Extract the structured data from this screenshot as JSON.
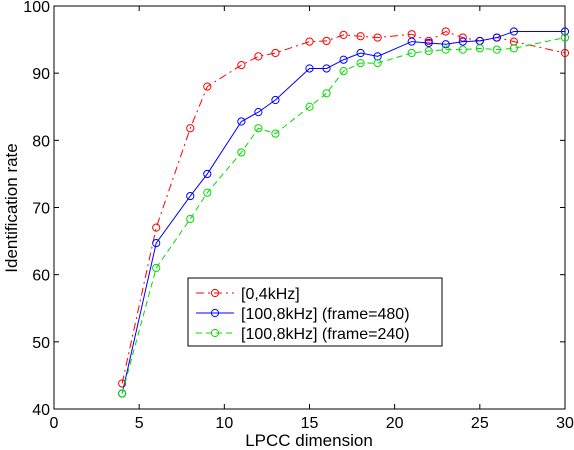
{
  "chart_data": {
    "type": "line",
    "title": "",
    "xlabel": "LPCC dimension",
    "ylabel": "Identification rate",
    "xlim": [
      0,
      30
    ],
    "ylim": [
      40,
      100
    ],
    "xticks": [
      "0",
      "5",
      "10",
      "15",
      "20",
      "25",
      "30"
    ],
    "yticks": [
      "40",
      "50",
      "60",
      "70",
      "80",
      "90",
      "100"
    ],
    "grid": false,
    "legend_position": "lower-center",
    "series": [
      {
        "name": "[0,4kHz]",
        "color": "#ff0000",
        "line_style": "dash-dot",
        "marker": "circle",
        "x": [
          4,
          6,
          8,
          9,
          11,
          12,
          13,
          15,
          16,
          17,
          18,
          19,
          21,
          22,
          23,
          24,
          25,
          26,
          27,
          30
        ],
        "y": [
          43.8,
          67,
          81.8,
          88,
          91.2,
          92.5,
          93,
          94.7,
          94.8,
          95.7,
          95.5,
          95.3,
          95.8,
          94.8,
          96.2,
          95.3,
          94.8,
          95.3,
          94.7,
          93
        ]
      },
      {
        "name": "[100,8kHz] (frame=480)",
        "color": "#0000ff",
        "line_style": "solid",
        "marker": "circle",
        "x": [
          4,
          6,
          8,
          9,
          11,
          12,
          13,
          15,
          16,
          17,
          18,
          19,
          21,
          22,
          23,
          24,
          25,
          26,
          27,
          30
        ],
        "y": [
          42.3,
          64.7,
          71.7,
          75,
          82.8,
          84.2,
          86,
          90.7,
          90.7,
          92,
          93,
          92.5,
          94.7,
          94.5,
          94.3,
          94.7,
          94.8,
          95.3,
          96.2,
          96.2
        ]
      },
      {
        "name": "[100,8kHz] (frame=240)",
        "color": "#00dd00",
        "line_style": "dashed",
        "marker": "circle",
        "x": [
          4,
          6,
          8,
          9,
          11,
          12,
          13,
          15,
          16,
          17,
          18,
          19,
          21,
          22,
          23,
          24,
          25,
          26,
          27,
          30
        ],
        "y": [
          42.3,
          61,
          68.3,
          72.2,
          78.2,
          81.8,
          81,
          85,
          87,
          90.3,
          91.5,
          91.5,
          93,
          93.3,
          93.5,
          93.5,
          93.7,
          93.5,
          93.7,
          95.3
        ]
      }
    ]
  }
}
